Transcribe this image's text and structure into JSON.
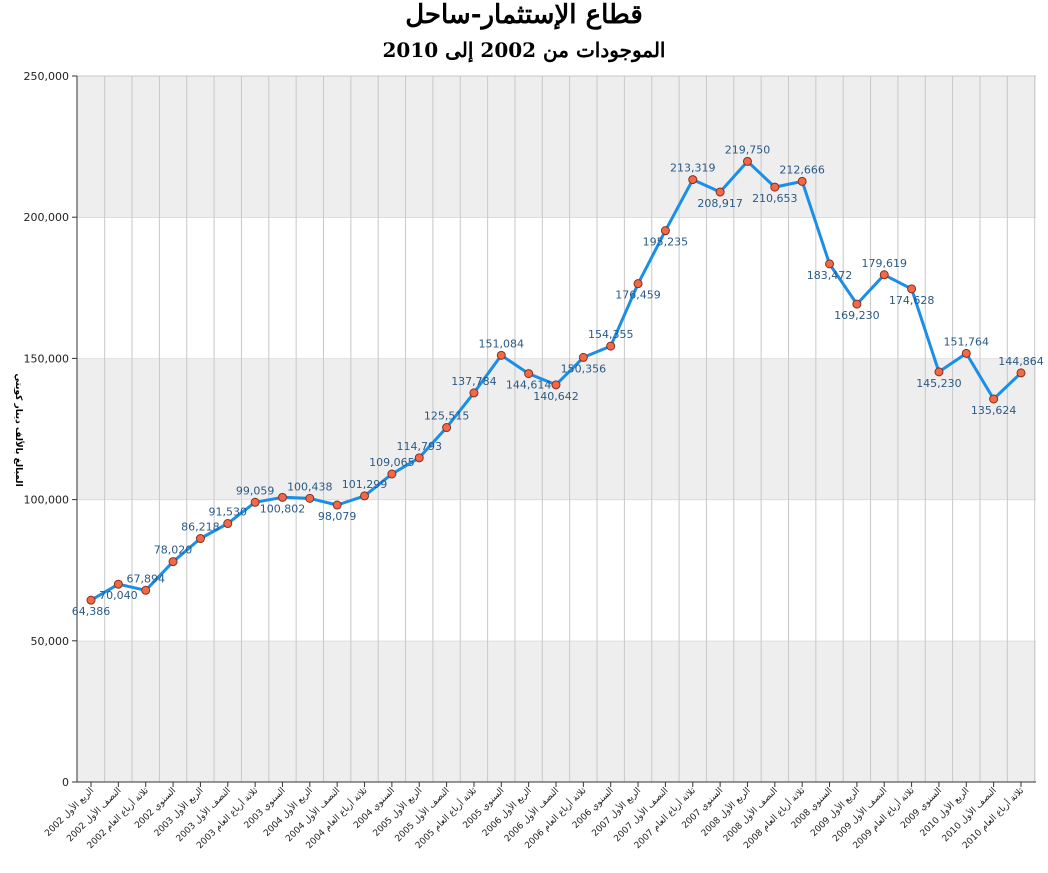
{
  "chart_data": {
    "type": "line",
    "title": "قطاع الإستثمار-ساحل",
    "subtitle": "الموجودات من 2002 إلى 2010",
    "ylabel": "المبالغ بالألف دينار كويتي",
    "xlabel": "",
    "ylim": [
      0,
      250000
    ],
    "yticks": [
      "0",
      "50,000",
      "100,000",
      "150,000",
      "200,000",
      "250,000"
    ],
    "grid": "horizontal alternating bands with vertical lines",
    "categories": [
      "الربع الأول 2002",
      "النصف الأول 2002",
      "ثلاثة أرباع العام 2002",
      "السنوي 2002",
      "الربع الأول 2003",
      "النصف الأول 2003",
      "ثلاثة أرباع العام 2003",
      "السنوي 2003",
      "الربع الأول 2004",
      "النصف الأول 2004",
      "ثلاثة أرباع العام 2004",
      "السنوي 2004",
      "الربع الأول 2005",
      "النصف الأول 2005",
      "ثلاثة أرباع العام 2005",
      "السنوي 2005",
      "الربع الأول 2006",
      "النصف الأول 2006",
      "ثلاثة أرباع العام 2006",
      "السنوي 2006",
      "الربع الأول 2007",
      "النصف الأول 2007",
      "ثلاثة أرباع العام 2007",
      "السنوي 2007",
      "الربع الأول 2008",
      "النصف الأول 2008",
      "ثلاثة أرباع العام 2008",
      "السنوي 2008",
      "الربع الأول 2009",
      "النصف الأول 2009",
      "ثلاثة أرباع العام 2009",
      "السنوي 2009",
      "الربع الأول 2010",
      "النصف الأول 2010",
      "ثلاثة أرباع العام 2010"
    ],
    "values": [
      64386,
      70040,
      67894,
      78020,
      86218,
      91530,
      99059,
      100802,
      100438,
      98079,
      101299,
      109065,
      114793,
      125515,
      137784,
      151084,
      144614,
      140642,
      150356,
      154355,
      176459,
      195235,
      213319,
      208917,
      219750,
      210653,
      212666,
      183472,
      169230,
      179619,
      174628,
      145230,
      151764,
      135624,
      144864
    ],
    "data_labels": [
      "64,386",
      "70,040",
      "67,894",
      "78,020",
      "86,218",
      "91,530",
      "99,059",
      "100,802",
      "100,438",
      "98,079",
      "101,299",
      "109,065",
      "114,793",
      "125,515",
      "137,784",
      "151,084",
      "144,614",
      "140,642",
      "150,356",
      "154,355",
      "176,459",
      "195,235",
      "213,319",
      "208,917",
      "219,750",
      "210,653",
      "212,666",
      "183,472",
      "169,230",
      "179,619",
      "174,628",
      "145,230",
      "151,764",
      "135,624",
      "144,864"
    ],
    "label_position": [
      "below",
      "below",
      "above",
      "above",
      "above",
      "above",
      "above",
      "below",
      "above",
      "below",
      "above",
      "above",
      "above",
      "above",
      "above",
      "above",
      "below",
      "below",
      "below",
      "above",
      "below",
      "below",
      "above",
      "below",
      "above",
      "below",
      "above",
      "below",
      "below",
      "above",
      "below",
      "below",
      "above",
      "below",
      "above"
    ],
    "colors": {
      "line": "#1a8fe8",
      "marker_fill": "#f06a4a",
      "marker_stroke": "#8a2e1a",
      "label": "#2a5a86",
      "band": "#eeeeee"
    }
  }
}
